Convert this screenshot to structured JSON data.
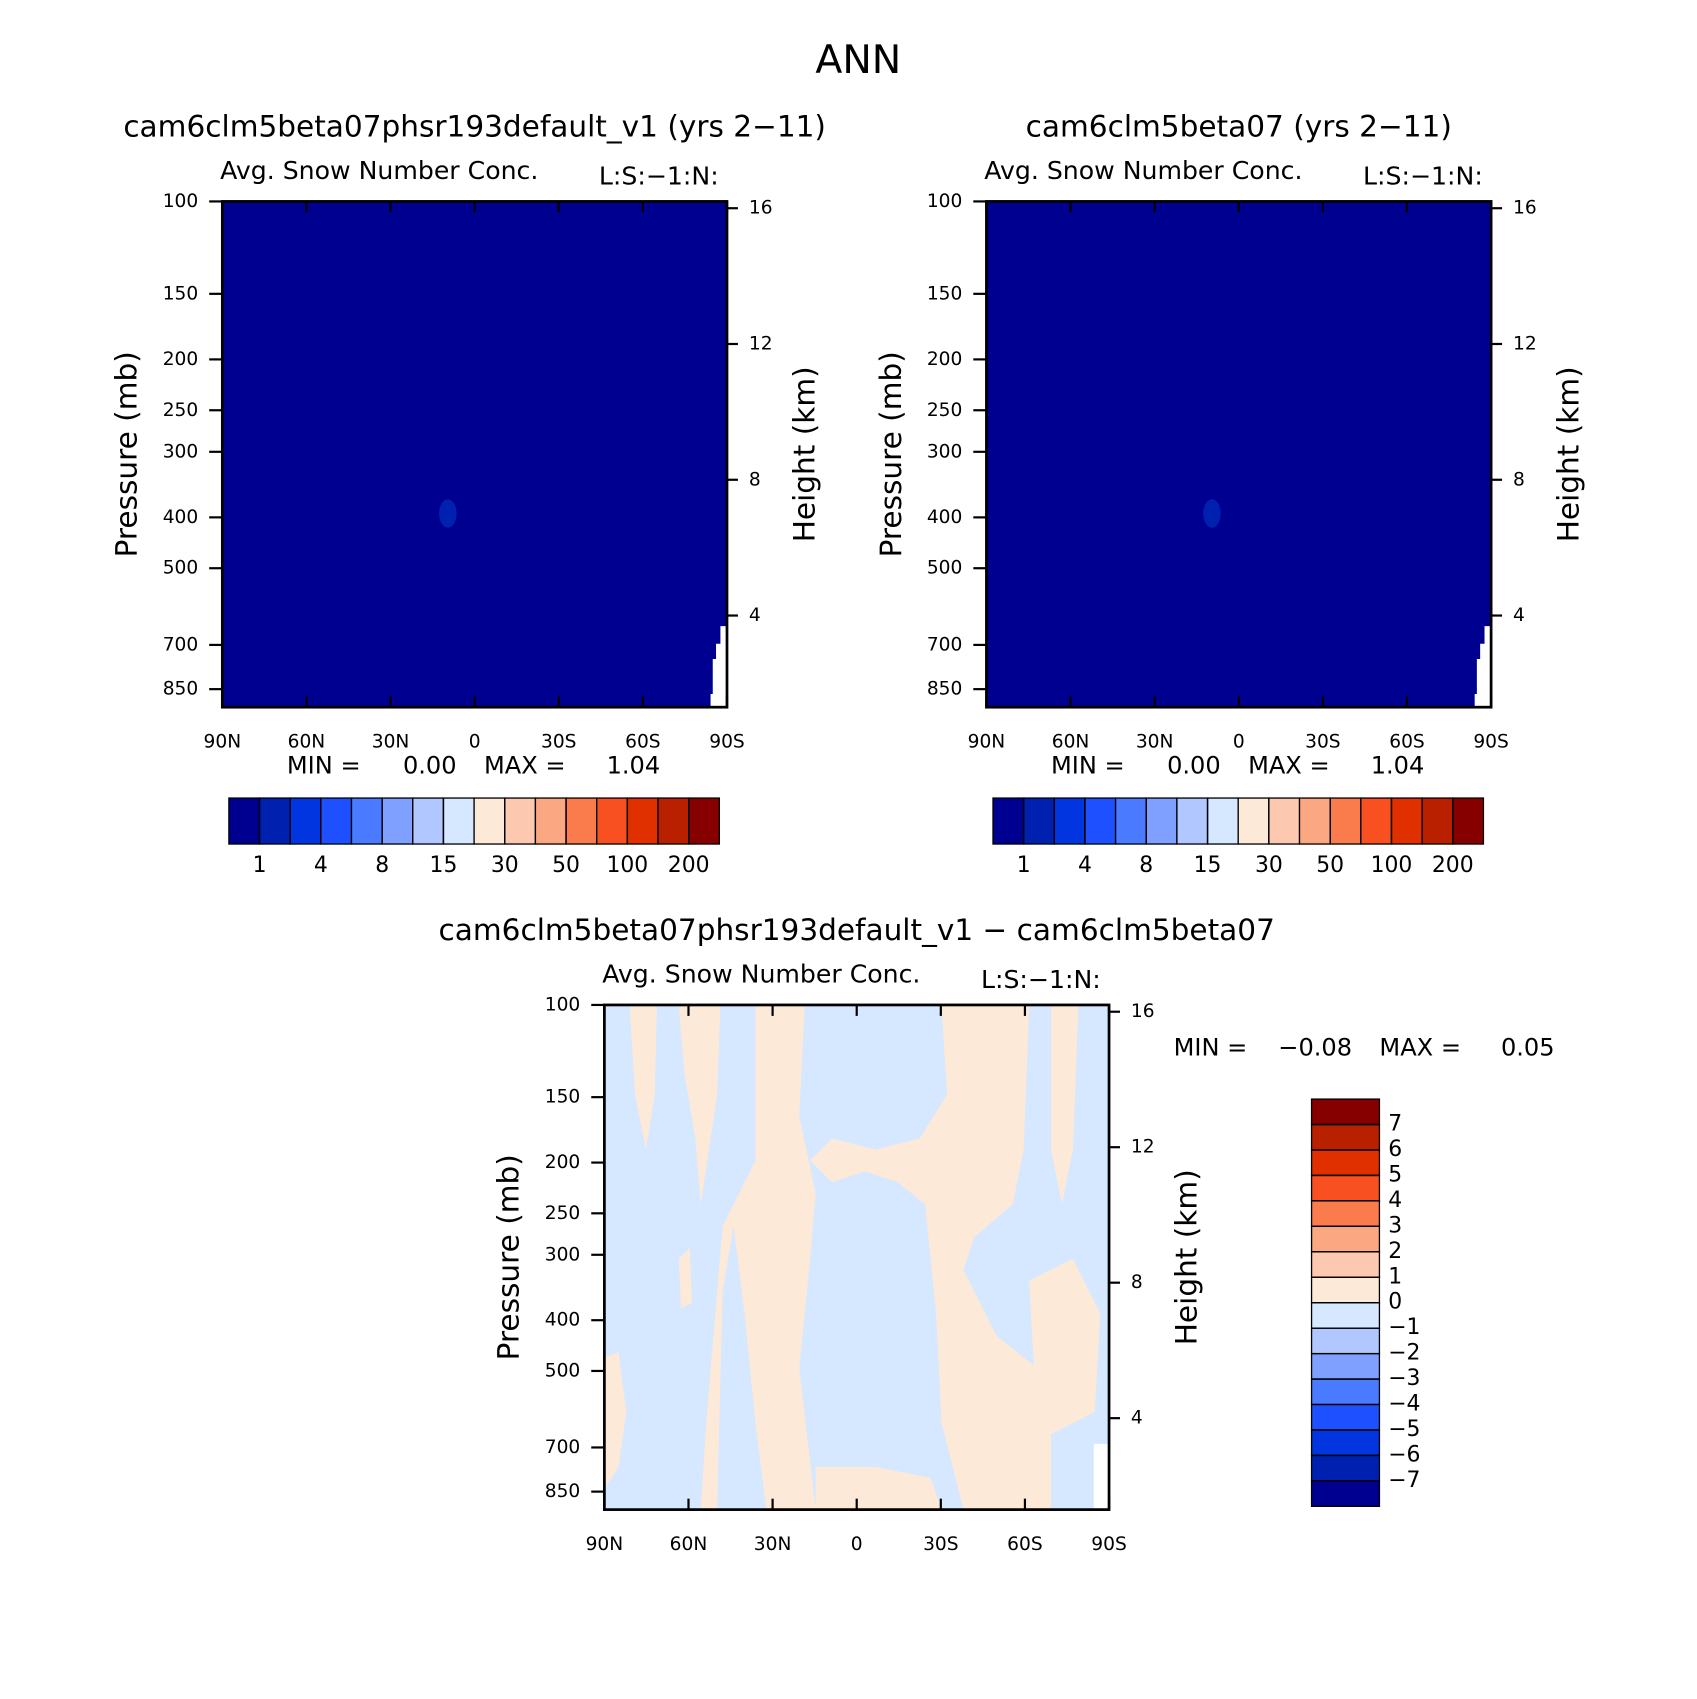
{
  "title": "ANN",
  "chart_data": [
    {
      "type": "contour",
      "title": "cam6clm5beta07phsr193default_v1 (yrs 2−11)",
      "subtitle": "Avg. Snow Number Conc.",
      "corner_label": "L:S:−1:N:",
      "xlim": [
        90,
        -90
      ],
      "xticks": [
        {
          "value": 90,
          "label": "90N"
        },
        {
          "value": 60,
          "label": "60N"
        },
        {
          "value": 30,
          "label": "30N"
        },
        0,
        {
          "value": -30,
          "label": "30S"
        },
        {
          "value": -60,
          "label": "60S"
        },
        {
          "value": -90,
          "label": "90S"
        }
      ],
      "ylabel": "Pressure (mb)",
      "yscale": "log",
      "ylim": [
        100,
        920
      ],
      "yticks": [
        100,
        150,
        200,
        250,
        300,
        400,
        500,
        700,
        850
      ],
      "y2label": "Height (km)",
      "y2lim": [
        1.3,
        16.2
      ],
      "y2ticks": [
        4,
        8,
        12,
        16
      ],
      "min_label": "MIN =",
      "min": "0.00",
      "max_label": "MAX =",
      "max": "1.04",
      "background_color": "#000090",
      "colorbar": {
        "orientation": "horizontal",
        "colors": [
          "#000090",
          "#0020b0",
          "#0035e0",
          "#1e50ff",
          "#4a7aff",
          "#7fa0ff",
          "#b0c8ff",
          "#d6e8ff",
          "#fde9d8",
          "#fcc9b0",
          "#fba882",
          "#fa7b4c",
          "#f85020",
          "#e03000",
          "#b82000",
          "#870000"
        ],
        "ticks": [
          1,
          4,
          8,
          15,
          30,
          50,
          100,
          200
        ]
      }
    },
    {
      "type": "contour",
      "title": "cam6clm5beta07 (yrs 2−11)",
      "subtitle": "Avg. Snow Number Conc.",
      "corner_label": "L:S:−1:N:",
      "xlim": [
        90,
        -90
      ],
      "xticks": [
        {
          "value": 90,
          "label": "90N"
        },
        {
          "value": 60,
          "label": "60N"
        },
        {
          "value": 30,
          "label": "30N"
        },
        0,
        {
          "value": -30,
          "label": "30S"
        },
        {
          "value": -60,
          "label": "60S"
        },
        {
          "value": -90,
          "label": "90S"
        }
      ],
      "ylabel": "Pressure (mb)",
      "yscale": "log",
      "ylim": [
        100,
        920
      ],
      "yticks": [
        100,
        150,
        200,
        250,
        300,
        400,
        500,
        700,
        850
      ],
      "y2label": "Height (km)",
      "y2lim": [
        1.3,
        16.2
      ],
      "y2ticks": [
        4,
        8,
        12,
        16
      ],
      "min_label": "MIN =",
      "min": "0.00",
      "max_label": "MAX =",
      "max": "1.04",
      "background_color": "#000090",
      "colorbar": {
        "orientation": "horizontal",
        "colors": [
          "#000090",
          "#0020b0",
          "#0035e0",
          "#1e50ff",
          "#4a7aff",
          "#7fa0ff",
          "#b0c8ff",
          "#d6e8ff",
          "#fde9d8",
          "#fcc9b0",
          "#fba882",
          "#fa7b4c",
          "#f85020",
          "#e03000",
          "#b82000",
          "#870000"
        ],
        "ticks": [
          1,
          4,
          8,
          15,
          30,
          50,
          100,
          200
        ]
      }
    },
    {
      "type": "contour",
      "title": "cam6clm5beta07phsr193default_v1 − cam6clm5beta07",
      "subtitle": "Avg. Snow Number Conc.",
      "corner_label": "L:S:−1:N:",
      "xlim": [
        90,
        -90
      ],
      "xticks": [
        {
          "value": 90,
          "label": "90N"
        },
        {
          "value": 60,
          "label": "60N"
        },
        {
          "value": 30,
          "label": "30N"
        },
        0,
        {
          "value": -30,
          "label": "30S"
        },
        {
          "value": -60,
          "label": "60S"
        },
        {
          "value": -90,
          "label": "90S"
        }
      ],
      "ylabel": "Pressure (mb)",
      "yscale": "log",
      "ylim": [
        100,
        920
      ],
      "yticks": [
        100,
        150,
        200,
        250,
        300,
        400,
        500,
        700,
        850
      ],
      "y2label": "Height (km)",
      "y2lim": [
        1.3,
        16.2
      ],
      "y2ticks": [
        4,
        8,
        12,
        16
      ],
      "min_label": "MIN =",
      "min": "−0.08",
      "max_label": "MAX =",
      "max": "0.05",
      "background_color": "#d6e8ff",
      "patch_color": "#fde9d8",
      "colorbar": {
        "orientation": "vertical",
        "colors": [
          "#870000",
          "#b82000",
          "#e03000",
          "#f85020",
          "#fa7b4c",
          "#fba882",
          "#fcc9b0",
          "#fde9d8",
          "#d6e8ff",
          "#b0c8ff",
          "#7fa0ff",
          "#4a7aff",
          "#1e50ff",
          "#0035e0",
          "#0020b0",
          "#000090"
        ],
        "ticks": [
          7,
          6,
          5,
          4,
          3,
          2,
          1,
          0,
          {
            "value": -1,
            "label": "−1"
          },
          {
            "value": -2,
            "label": "−2"
          },
          {
            "value": -3,
            "label": "−3"
          },
          {
            "value": -4,
            "label": "−4"
          },
          {
            "value": -5,
            "label": "−5"
          },
          {
            "value": -6,
            "label": "−6"
          },
          {
            "value": -7,
            "label": "−7"
          }
        ]
      }
    }
  ]
}
